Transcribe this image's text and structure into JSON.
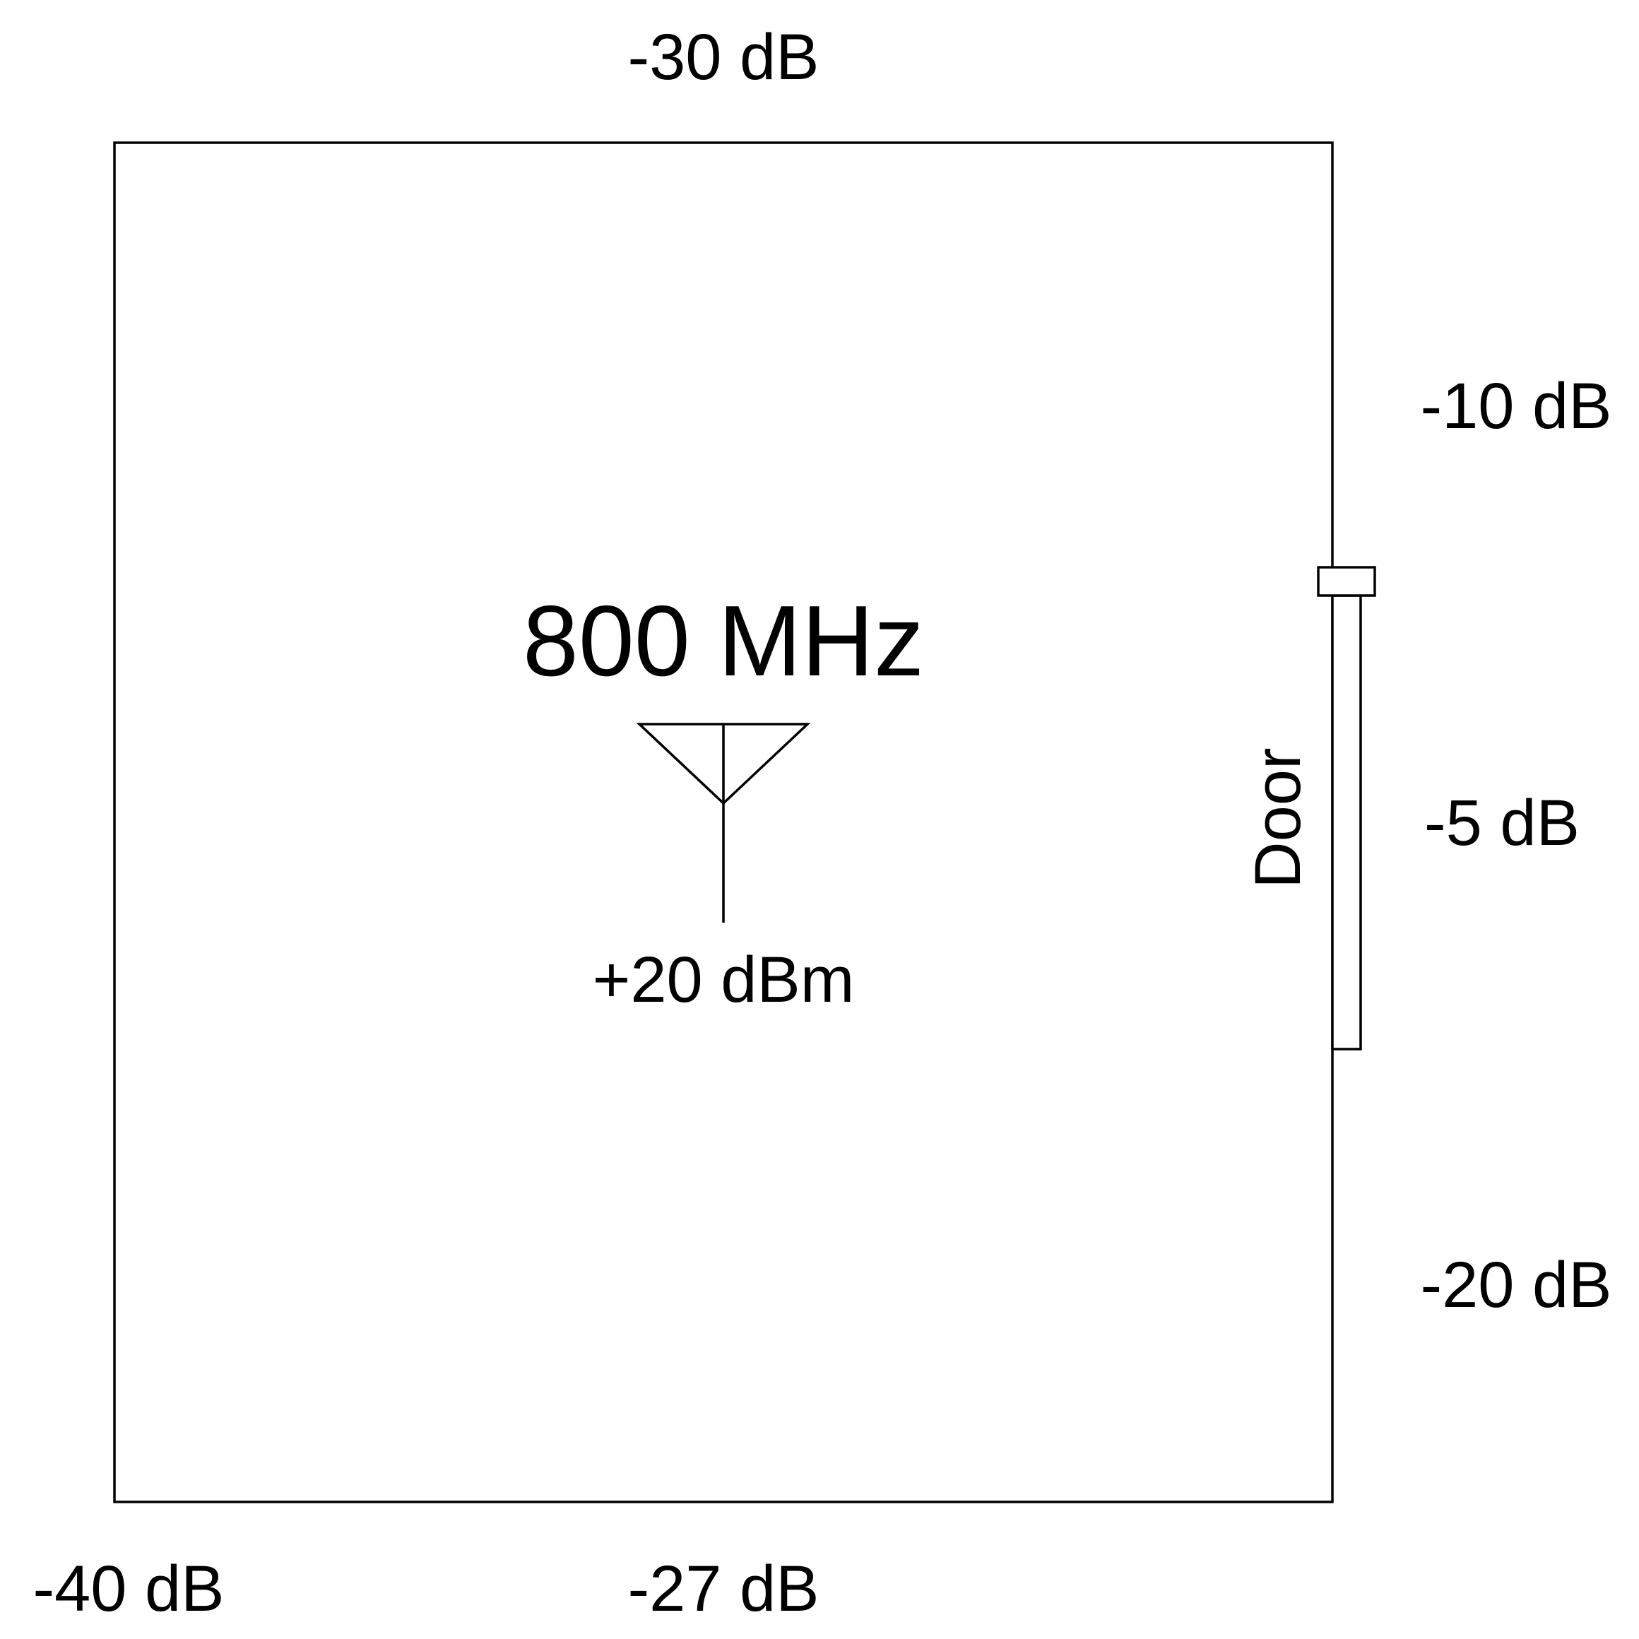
{
  "room": {
    "frequency": "800 MHz",
    "antenna": {
      "power": "+20 dBm",
      "icon": "antenna-icon"
    },
    "door": {
      "label": "Door"
    }
  },
  "attenuation": {
    "top": "-30 dB",
    "right_upper": "-10 dB",
    "door": "-5 dB",
    "right_lower": "-20 dB",
    "bottom_left": "-40 dB",
    "bottom": "-27 dB"
  }
}
